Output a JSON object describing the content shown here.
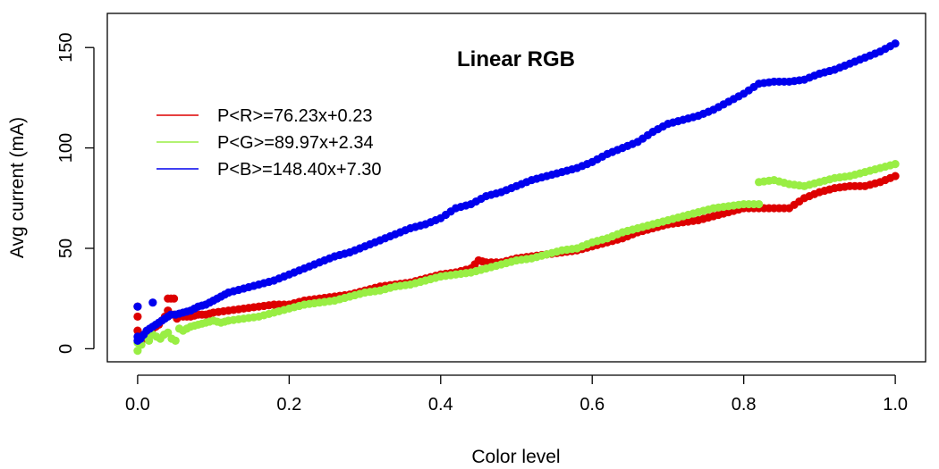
{
  "chart_data": {
    "type": "scatter",
    "title": "Linear RGB",
    "xlabel": "Color level",
    "ylabel": "Avg current (mA)",
    "xlim": [
      -0.04,
      1.04
    ],
    "ylim": [
      -6.5,
      167
    ],
    "xticks": [
      0.0,
      0.2,
      0.4,
      0.6,
      0.8,
      1.0
    ],
    "xtick_labels": [
      "0.0",
      "0.2",
      "0.4",
      "0.6",
      "0.8",
      "1.0"
    ],
    "yticks": [
      0,
      50,
      100,
      150
    ],
    "ytick_labels": [
      "0",
      "50",
      "100",
      "150"
    ],
    "grid": false,
    "legend_position": "top-left",
    "series": [
      {
        "name": "P<R>=76.23x+0.23",
        "color": "#dd0000",
        "points": [
          [
            0.0,
            9
          ],
          [
            0.0,
            21
          ],
          [
            0.0,
            16
          ],
          [
            0.004,
            3
          ],
          [
            0.008,
            5
          ],
          [
            0.012,
            7
          ],
          [
            0.016,
            8
          ],
          [
            0.02,
            10
          ],
          [
            0.024,
            11
          ],
          [
            0.028,
            12
          ],
          [
            0.032,
            14
          ],
          [
            0.036,
            16
          ],
          [
            0.04,
            19
          ],
          [
            0.04,
            25
          ],
          [
            0.044,
            25
          ],
          [
            0.048,
            25
          ],
          [
            0.044,
            17
          ],
          [
            0.048,
            17
          ],
          [
            0.052,
            15
          ],
          [
            0.06,
            16
          ],
          [
            0.07,
            16
          ],
          [
            0.08,
            17
          ],
          [
            0.09,
            17
          ],
          [
            0.1,
            18
          ],
          [
            0.12,
            19
          ],
          [
            0.14,
            20
          ],
          [
            0.16,
            21
          ],
          [
            0.18,
            22
          ],
          [
            0.2,
            22
          ],
          [
            0.22,
            24
          ],
          [
            0.24,
            25
          ],
          [
            0.26,
            26
          ],
          [
            0.28,
            27
          ],
          [
            0.3,
            29
          ],
          [
            0.32,
            31
          ],
          [
            0.34,
            32
          ],
          [
            0.36,
            33
          ],
          [
            0.38,
            35
          ],
          [
            0.4,
            37
          ],
          [
            0.42,
            38
          ],
          [
            0.44,
            40
          ],
          [
            0.45,
            44
          ],
          [
            0.46,
            43
          ],
          [
            0.48,
            43
          ],
          [
            0.5,
            45
          ],
          [
            0.52,
            46
          ],
          [
            0.54,
            47
          ],
          [
            0.56,
            48
          ],
          [
            0.58,
            49
          ],
          [
            0.6,
            51
          ],
          [
            0.62,
            53
          ],
          [
            0.64,
            55
          ],
          [
            0.66,
            58
          ],
          [
            0.68,
            60
          ],
          [
            0.7,
            62
          ],
          [
            0.72,
            63
          ],
          [
            0.74,
            64
          ],
          [
            0.76,
            66
          ],
          [
            0.78,
            68
          ],
          [
            0.8,
            70
          ],
          [
            0.82,
            70
          ],
          [
            0.84,
            70
          ],
          [
            0.86,
            70
          ],
          [
            0.88,
            75
          ],
          [
            0.9,
            78
          ],
          [
            0.92,
            80
          ],
          [
            0.94,
            81
          ],
          [
            0.96,
            81
          ],
          [
            0.98,
            83
          ],
          [
            1.0,
            86
          ]
        ]
      },
      {
        "name": "P<G>=89.97x+2.34",
        "color": "#99ee44",
        "points": [
          [
            0.0,
            -1
          ],
          [
            0.0,
            3
          ],
          [
            0.005,
            2
          ],
          [
            0.01,
            6
          ],
          [
            0.015,
            4
          ],
          [
            0.02,
            7
          ],
          [
            0.025,
            6
          ],
          [
            0.03,
            5
          ],
          [
            0.035,
            7
          ],
          [
            0.04,
            8
          ],
          [
            0.045,
            5
          ],
          [
            0.05,
            4
          ],
          [
            0.055,
            10
          ],
          [
            0.06,
            9
          ],
          [
            0.07,
            11
          ],
          [
            0.08,
            12
          ],
          [
            0.09,
            13
          ],
          [
            0.1,
            14
          ],
          [
            0.11,
            13
          ],
          [
            0.12,
            14
          ],
          [
            0.14,
            15
          ],
          [
            0.16,
            16
          ],
          [
            0.18,
            18
          ],
          [
            0.2,
            20
          ],
          [
            0.22,
            22
          ],
          [
            0.24,
            23
          ],
          [
            0.26,
            24
          ],
          [
            0.28,
            26
          ],
          [
            0.3,
            28
          ],
          [
            0.32,
            29
          ],
          [
            0.34,
            31
          ],
          [
            0.36,
            32
          ],
          [
            0.38,
            34
          ],
          [
            0.4,
            36
          ],
          [
            0.42,
            37
          ],
          [
            0.44,
            38
          ],
          [
            0.46,
            40
          ],
          [
            0.48,
            42
          ],
          [
            0.5,
            44
          ],
          [
            0.52,
            45
          ],
          [
            0.54,
            47
          ],
          [
            0.56,
            49
          ],
          [
            0.58,
            50
          ],
          [
            0.6,
            53
          ],
          [
            0.62,
            55
          ],
          [
            0.64,
            58
          ],
          [
            0.66,
            60
          ],
          [
            0.68,
            62
          ],
          [
            0.7,
            64
          ],
          [
            0.72,
            66
          ],
          [
            0.74,
            68
          ],
          [
            0.76,
            70
          ],
          [
            0.78,
            71
          ],
          [
            0.8,
            72
          ],
          [
            0.82,
            72
          ],
          [
            0.82,
            83
          ],
          [
            0.84,
            84
          ],
          [
            0.86,
            82
          ],
          [
            0.88,
            81
          ],
          [
            0.9,
            83
          ],
          [
            0.92,
            85
          ],
          [
            0.94,
            86
          ],
          [
            0.96,
            88
          ],
          [
            0.98,
            90
          ],
          [
            1.0,
            92
          ]
        ]
      },
      {
        "name": "P<B>=148.40x+7.30",
        "color": "#0000ee",
        "points": [
          [
            0.0,
            4
          ],
          [
            0.0,
            6
          ],
          [
            0.0,
            21
          ],
          [
            0.004,
            5
          ],
          [
            0.008,
            7
          ],
          [
            0.012,
            9
          ],
          [
            0.016,
            10
          ],
          [
            0.02,
            11
          ],
          [
            0.02,
            23
          ],
          [
            0.024,
            12
          ],
          [
            0.028,
            13
          ],
          [
            0.032,
            14
          ],
          [
            0.036,
            15
          ],
          [
            0.04,
            16
          ],
          [
            0.044,
            17
          ],
          [
            0.05,
            17
          ],
          [
            0.06,
            18
          ],
          [
            0.07,
            19
          ],
          [
            0.08,
            21
          ],
          [
            0.09,
            22
          ],
          [
            0.1,
            24
          ],
          [
            0.11,
            26
          ],
          [
            0.12,
            28
          ],
          [
            0.14,
            30
          ],
          [
            0.16,
            32
          ],
          [
            0.18,
            34
          ],
          [
            0.2,
            37
          ],
          [
            0.22,
            40
          ],
          [
            0.24,
            43
          ],
          [
            0.26,
            46
          ],
          [
            0.28,
            48
          ],
          [
            0.3,
            51
          ],
          [
            0.32,
            54
          ],
          [
            0.34,
            57
          ],
          [
            0.36,
            60
          ],
          [
            0.38,
            62
          ],
          [
            0.4,
            65
          ],
          [
            0.42,
            70
          ],
          [
            0.44,
            72
          ],
          [
            0.46,
            76
          ],
          [
            0.48,
            78
          ],
          [
            0.5,
            81
          ],
          [
            0.52,
            84
          ],
          [
            0.54,
            86
          ],
          [
            0.56,
            88
          ],
          [
            0.58,
            90
          ],
          [
            0.6,
            93
          ],
          [
            0.62,
            97
          ],
          [
            0.64,
            100
          ],
          [
            0.66,
            103
          ],
          [
            0.68,
            108
          ],
          [
            0.7,
            112
          ],
          [
            0.72,
            114
          ],
          [
            0.74,
            116
          ],
          [
            0.76,
            119
          ],
          [
            0.78,
            123
          ],
          [
            0.8,
            127
          ],
          [
            0.82,
            132
          ],
          [
            0.84,
            133
          ],
          [
            0.86,
            133
          ],
          [
            0.88,
            134
          ],
          [
            0.9,
            137
          ],
          [
            0.92,
            139
          ],
          [
            0.94,
            142
          ],
          [
            0.96,
            145
          ],
          [
            0.98,
            148
          ],
          [
            1.0,
            152
          ]
        ]
      }
    ]
  }
}
